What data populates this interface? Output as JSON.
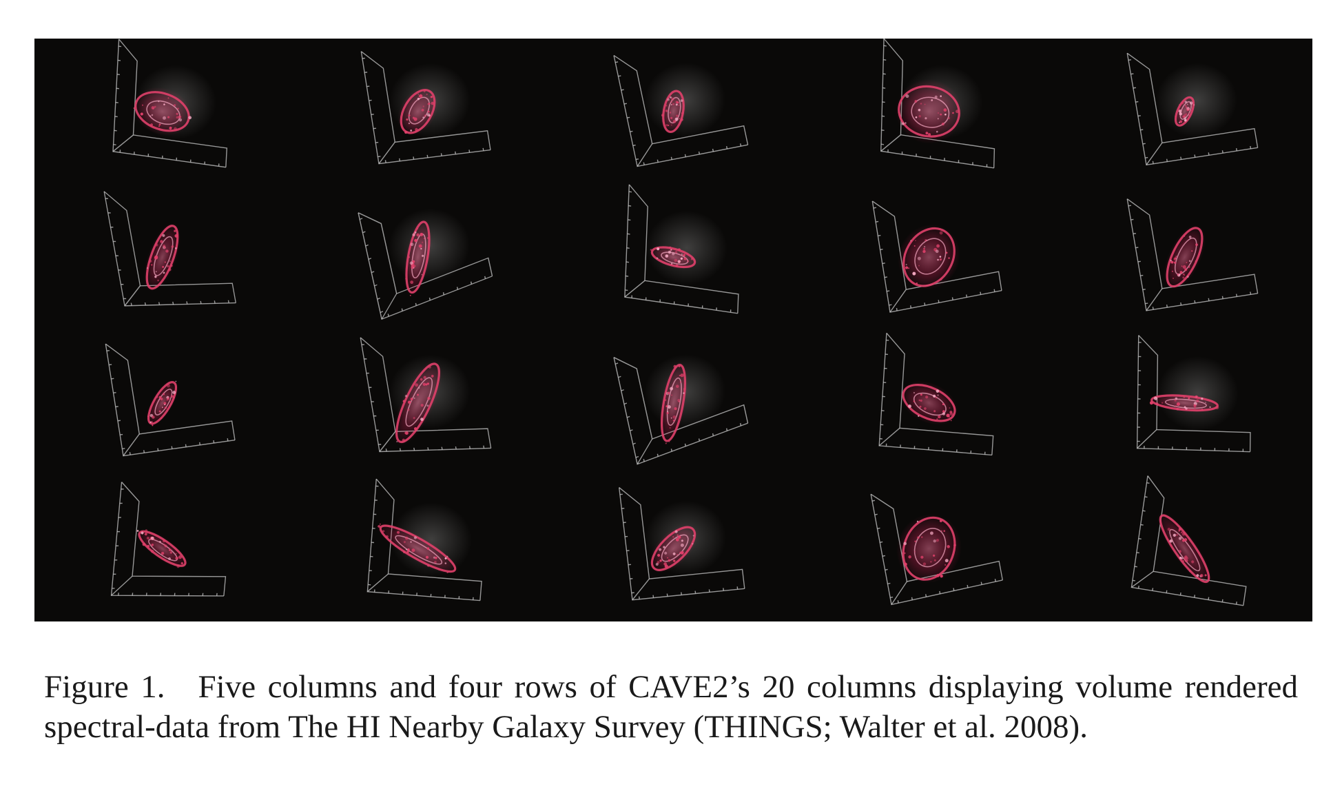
{
  "figure": {
    "label": "Figure 1.",
    "caption": "Five columns and four rows of CAVE2’s 20 columns displaying volume rendered spectral-data from The HI Nearby Galaxy Survey (THINGS; Walter et al. 2008).",
    "panel_grid": {
      "columns": 5,
      "rows": 4
    },
    "colors": {
      "background": "#0a0908",
      "frame": "#c8c8c8",
      "emission": "#e0406a",
      "highlight": "#f3a7c0"
    }
  }
}
